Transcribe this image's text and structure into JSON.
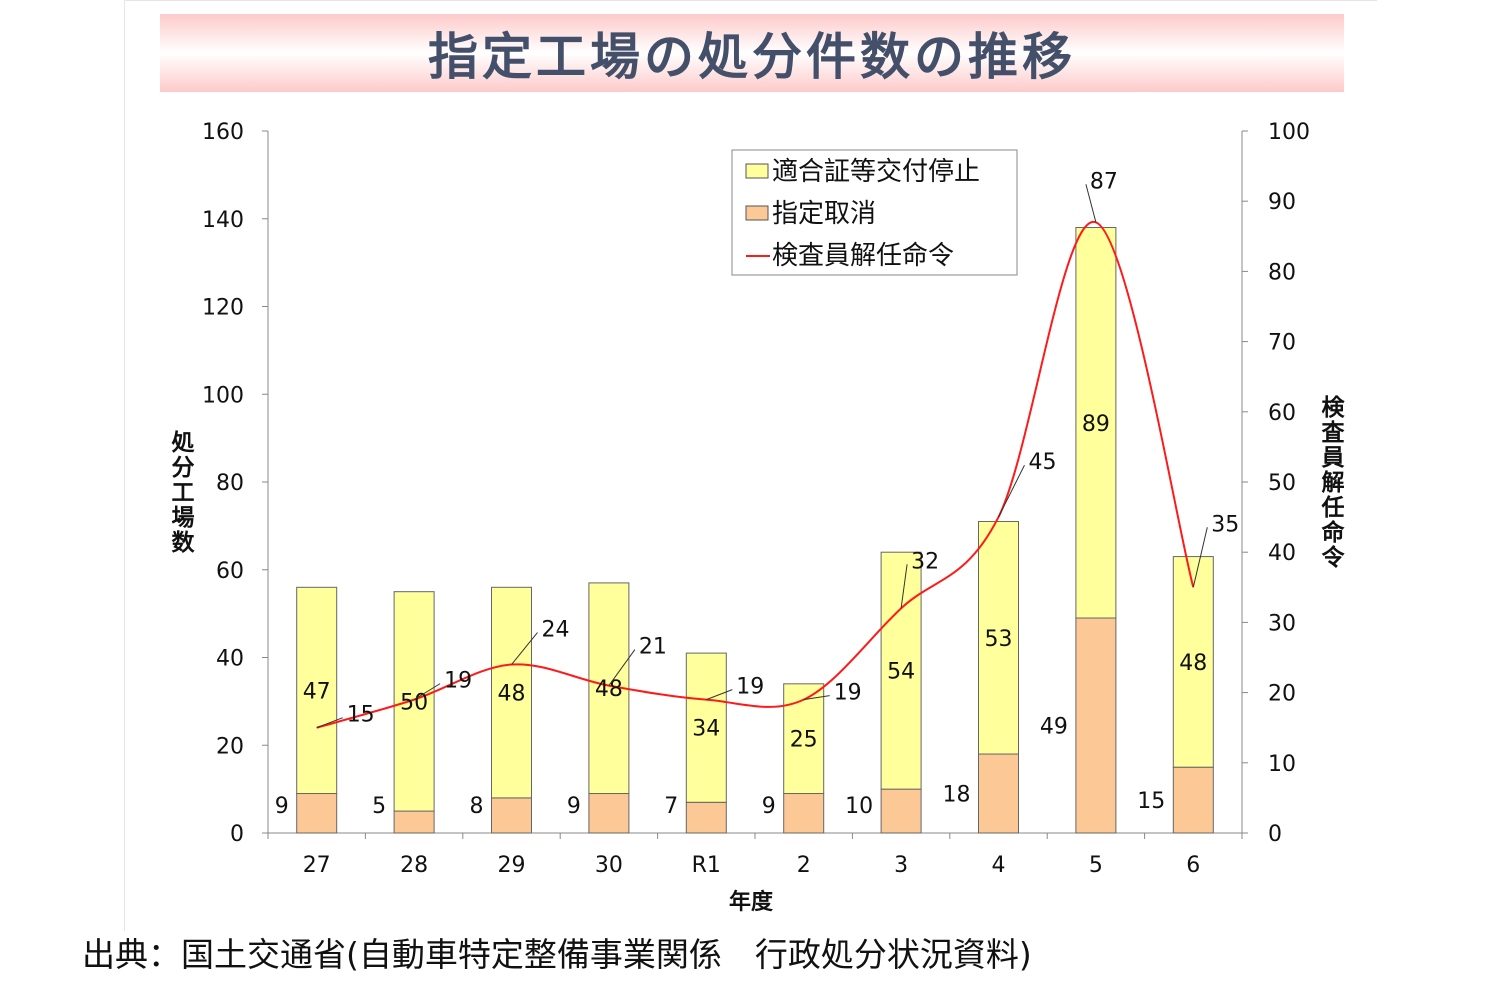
{
  "chart_data": {
    "type": "bar",
    "stacked": true,
    "title": "指定工場の処分件数の推移",
    "xlabel": "年度",
    "ylabel": "処分工場数",
    "y2label": "検査員解任命令",
    "categories": [
      "27",
      "28",
      "29",
      "30",
      "R1",
      "2",
      "3",
      "4",
      "5",
      "6"
    ],
    "ylim": [
      0,
      160
    ],
    "yticks": [
      0,
      20,
      40,
      60,
      80,
      100,
      120,
      140,
      160
    ],
    "y2lim": [
      0,
      100
    ],
    "y2ticks": [
      0,
      10,
      20,
      30,
      40,
      50,
      60,
      70,
      80,
      90,
      100
    ],
    "legend_position": "top-right",
    "series": [
      {
        "name": "指定取消",
        "type": "bar",
        "axis": "left",
        "color": "#fcc896",
        "values": [
          9,
          5,
          8,
          9,
          7,
          9,
          10,
          18,
          49,
          15
        ]
      },
      {
        "name": "適合証等交付停止",
        "type": "bar",
        "axis": "left",
        "color": "#ffff9c",
        "values": [
          47,
          50,
          48,
          48,
          34,
          25,
          54,
          53,
          89,
          48
        ]
      },
      {
        "name": "検査員解任命令",
        "type": "line",
        "axis": "right",
        "color": "#ff1a1a",
        "values": [
          15,
          19,
          24,
          21,
          19,
          19,
          32,
          45,
          87,
          35
        ]
      }
    ]
  },
  "source": "出典：国土交通省(自動車特定整備事業関係　行政処分状況資料)"
}
